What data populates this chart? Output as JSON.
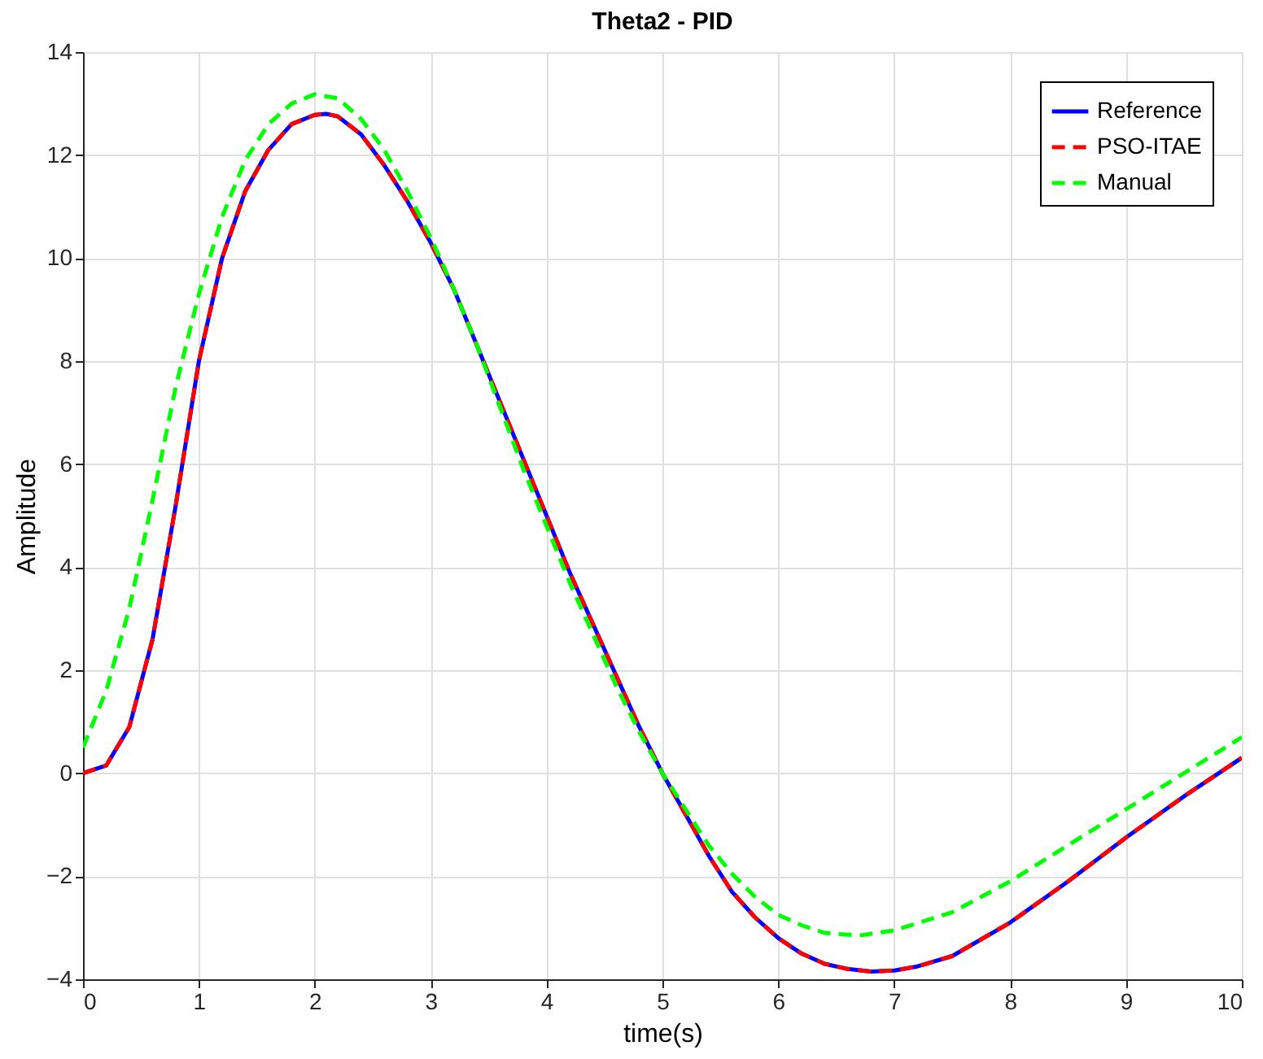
{
  "chart_data": {
    "type": "line",
    "title": "Theta2 - PID",
    "xlabel": "time(s)",
    "ylabel": "Amplitude",
    "xlim": [
      0,
      10
    ],
    "xticks": [
      0,
      1,
      2,
      3,
      4,
      5,
      6,
      7,
      8,
      9,
      10
    ],
    "ylim": [
      -4,
      14
    ],
    "yticks": [
      -4,
      -2,
      0,
      2,
      4,
      6,
      8,
      10,
      12,
      14
    ],
    "grid": true,
    "legend": "top right",
    "marker": "none",
    "series": [
      {
        "name": "Reference",
        "color": "#0000ff",
        "line_style": "solid",
        "x": [
          0,
          0.2,
          0.4,
          0.6,
          0.8,
          1.0,
          1.2,
          1.4,
          1.6,
          1.8,
          2.0,
          2.1,
          2.2,
          2.4,
          2.6,
          2.8,
          3.0,
          3.2,
          3.4,
          3.6,
          3.8,
          4.0,
          4.2,
          4.4,
          4.6,
          4.8,
          5.0,
          5.2,
          5.4,
          5.6,
          5.8,
          6.0,
          6.2,
          6.4,
          6.6,
          6.8,
          7.0,
          7.2,
          7.5,
          8.0,
          8.5,
          9.0,
          9.5,
          10
        ],
        "values": [
          0,
          0.15,
          0.9,
          2.6,
          5.2,
          8.0,
          10.0,
          11.3,
          12.1,
          12.6,
          12.78,
          12.8,
          12.75,
          12.4,
          11.8,
          11.1,
          10.3,
          9.4,
          8.3,
          7.2,
          6.1,
          5.0,
          3.9,
          2.9,
          1.9,
          0.9,
          0,
          -0.8,
          -1.6,
          -2.3,
          -2.8,
          -3.2,
          -3.5,
          -3.7,
          -3.8,
          -3.85,
          -3.83,
          -3.75,
          -3.55,
          -2.9,
          -2.1,
          -1.25,
          -0.45,
          0.3
        ]
      },
      {
        "name": "PSO-ITAE",
        "color": "#ff0000",
        "line_style": "dashed",
        "x": [
          0,
          0.2,
          0.4,
          0.6,
          0.8,
          1.0,
          1.2,
          1.4,
          1.6,
          1.8,
          2.0,
          2.1,
          2.2,
          2.4,
          2.6,
          2.8,
          3.0,
          3.2,
          3.4,
          3.6,
          3.8,
          4.0,
          4.2,
          4.4,
          4.6,
          4.8,
          5.0,
          5.2,
          5.4,
          5.6,
          5.8,
          6.0,
          6.2,
          6.4,
          6.6,
          6.8,
          7.0,
          7.2,
          7.5,
          8.0,
          8.5,
          9.0,
          9.5,
          10
        ],
        "values": [
          0,
          0.15,
          0.9,
          2.6,
          5.2,
          8.0,
          10.0,
          11.3,
          12.1,
          12.6,
          12.78,
          12.8,
          12.75,
          12.4,
          11.8,
          11.1,
          10.3,
          9.4,
          8.3,
          7.2,
          6.1,
          5.0,
          3.9,
          2.9,
          1.9,
          0.9,
          0,
          -0.8,
          -1.6,
          -2.3,
          -2.8,
          -3.2,
          -3.5,
          -3.7,
          -3.8,
          -3.85,
          -3.83,
          -3.75,
          -3.55,
          -2.9,
          -2.1,
          -1.25,
          -0.45,
          0.3
        ]
      },
      {
        "name": "Manual",
        "color": "#00ff00",
        "line_style": "dashed",
        "x": [
          0,
          0.2,
          0.4,
          0.6,
          0.8,
          1.0,
          1.2,
          1.4,
          1.6,
          1.8,
          2.0,
          2.2,
          2.4,
          2.6,
          2.8,
          3.0,
          3.2,
          3.4,
          3.6,
          3.8,
          4.0,
          4.2,
          4.4,
          4.6,
          4.8,
          5.0,
          5.2,
          5.4,
          5.6,
          5.8,
          6.0,
          6.2,
          6.4,
          6.7,
          7.0,
          7.5,
          8.0,
          8.5,
          9.0,
          9.5,
          10
        ],
        "values": [
          0.5,
          1.6,
          3.2,
          5.3,
          7.5,
          9.3,
          10.8,
          11.9,
          12.6,
          13.0,
          13.18,
          13.1,
          12.7,
          12.1,
          11.3,
          10.4,
          9.4,
          8.3,
          7.1,
          5.9,
          4.8,
          3.7,
          2.7,
          1.7,
          0.8,
          0,
          -0.7,
          -1.4,
          -1.95,
          -2.4,
          -2.75,
          -2.95,
          -3.1,
          -3.15,
          -3.05,
          -2.7,
          -2.1,
          -1.4,
          -0.7,
          0.0,
          0.7
        ]
      }
    ]
  }
}
